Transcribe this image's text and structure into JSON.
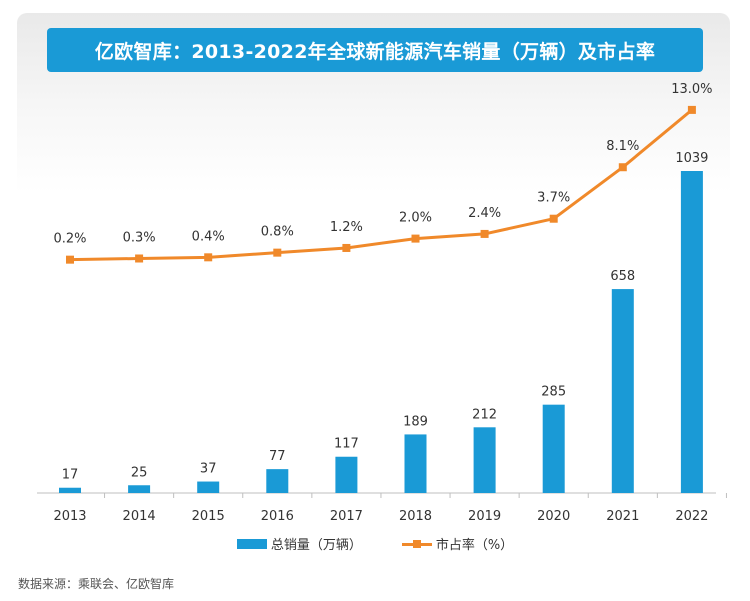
{
  "title": "亿欧智库：2013-2022年全球新能源汽车销量（万辆）及市占率",
  "source": "数据来源：乘联会、亿欧智库",
  "colors": {
    "bar": "#1a9ad6",
    "line": "#f0892a",
    "title_bg": "#1a9ad6"
  },
  "chart_data": {
    "type": "bar",
    "categories": [
      "2013",
      "2014",
      "2015",
      "2016",
      "2017",
      "2018",
      "2019",
      "2020",
      "2021",
      "2022"
    ],
    "series": [
      {
        "name": "总销量（万辆）",
        "type": "bar",
        "values": [
          17,
          25,
          37,
          77,
          117,
          189,
          212,
          285,
          658,
          1039
        ],
        "labels": [
          "17",
          "25",
          "37",
          "77",
          "117",
          "189",
          "212",
          "285",
          "658",
          "1039"
        ]
      },
      {
        "name": "市占率（%）",
        "type": "line",
        "values": [
          0.2,
          0.3,
          0.4,
          0.8,
          1.2,
          2.0,
          2.4,
          3.7,
          8.1,
          13.0
        ],
        "labels": [
          "0.2%",
          "0.3%",
          "0.4%",
          "0.8%",
          "1.2%",
          "2.0%",
          "2.4%",
          "3.7%",
          "8.1%",
          "13.0%"
        ]
      }
    ],
    "legend_position": "bottom-center",
    "grid": false
  }
}
